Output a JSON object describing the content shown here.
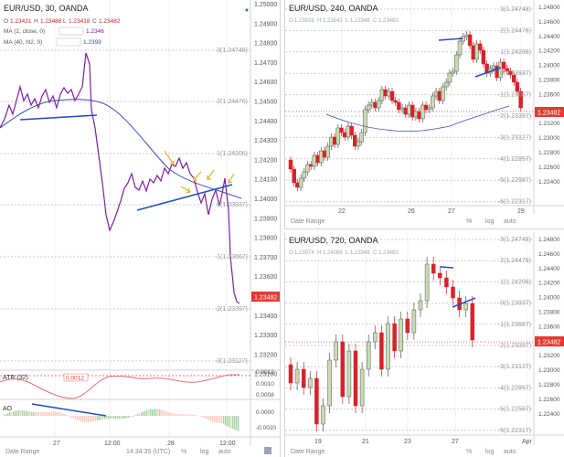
{
  "panels": {
    "left": {
      "title": "EUR/USD, 30, OANDA",
      "ohlc": {
        "o_label": "O",
        "o": "1.23431",
        "h_label": "H",
        "h": "1.23488",
        "l_label": "L",
        "l": "1.23418",
        "c_label": "C",
        "c": "1.23482"
      },
      "ma1": {
        "label": "MA (2, close, 0)",
        "value": "1.2346"
      },
      "ma2": {
        "label": "MA (40, hl2, 0)",
        "value": "1.2398"
      },
      "price_ticks": [
        "1.25000",
        "1.24900",
        "1.24800",
        "1.24700",
        "1.24600",
        "1.24500",
        "1.24400",
        "1.24300",
        "1.24200",
        "1.24100",
        "1.24000",
        "1.23900",
        "1.23800",
        "1.23700",
        "1.23600",
        "1.23500",
        "1.23400",
        "1.23300",
        "1.23200",
        "1.23100"
      ],
      "fib_levels": [
        "3(1.24748)",
        "2(1.24476)",
        "1(1.24206)",
        "0(1.23937)",
        "-1(1.23667)",
        "-2(1.23397)",
        "-3(1.23127)"
      ],
      "last_price": "1.23482",
      "atr": {
        "label": "ATR (32)",
        "value": "0.0012",
        "ticks": [
          "0.0012",
          "0.0010",
          "0.0008"
        ]
      },
      "ao": {
        "label": "AO",
        "ticks": [
          "0.0000",
          "-0.0020"
        ]
      },
      "x_ticks": [
        "27",
        "12:00",
        "28",
        "12:00"
      ],
      "bottom": {
        "date_range": "Date Range",
        "time": "14:34:35 (UTC)",
        "pct": "%",
        "log": "log",
        "auto": "auto"
      }
    },
    "top_right": {
      "title": "EUR/USD, 240, OANDA",
      "ohlc": {
        "o": "1.23828",
        "h": "1.23842",
        "l": "1.23348",
        "c": "1.23482"
      },
      "price_ticks": [
        "1.24800",
        "1.24600",
        "1.24400",
        "1.24200",
        "1.24000",
        "1.23800",
        "1.23600",
        "1.23400",
        "1.23200",
        "1.23000",
        "1.22800",
        "1.22600",
        "1.22400"
      ],
      "fib_levels": [
        "3(1.24748)",
        "2(1.24476)",
        "1(1.24206)",
        "0(1.23937)",
        "-1(1.23667)",
        "-2(1.23397)",
        "-3(1.23127)",
        "-4(1.22857)",
        "-5(1.22587)",
        "-6(1.22317)"
      ],
      "last_price": "1.23482",
      "x_ticks": [
        "22",
        "26",
        "27",
        "29"
      ],
      "bottom": {
        "date_range": "Date Range",
        "pct": "%",
        "log": "log",
        "auto": "auto"
      }
    },
    "bottom_right": {
      "title": "EUR/USD, 720, OANDA",
      "ohlc": {
        "o": "1.23974",
        "h": "1.24086",
        "l": "1.23348",
        "c": "1.23482"
      },
      "price_ticks": [
        "1.24800",
        "1.24600",
        "1.24400",
        "1.24200",
        "1.24000",
        "1.23800",
        "1.23600",
        "1.23400",
        "1.23200",
        "1.23000",
        "1.22800",
        "1.22600",
        "1.22400"
      ],
      "fib_levels": [
        "3(1.24748)",
        "2(1.24476)",
        "1(1.24206)",
        "0(1.23937)",
        "-1(1.23667)",
        "-2(1.23397)",
        "-3(1.23127)",
        "-4(1.22857)",
        "-5(1.22587)",
        "-6(1.22317)"
      ],
      "last_price": "1.23482",
      "x_ticks": [
        "19",
        "21",
        "23",
        "27",
        "Apr"
      ],
      "bottom": {
        "date_range": "Date Range",
        "pct": "%",
        "log": "log",
        "auto": "auto"
      }
    }
  },
  "colors": {
    "up": "#c8dcb4",
    "down": "#d6232a",
    "ma2": "#3f51b5",
    "ma1": "#7b1fa2",
    "trend": "#1e4fc4",
    "arrow": "#e6b422",
    "atr": "#e57373",
    "ao_up": "#a5d6a7",
    "ao_down": "#ffccbc",
    "last_bg": "#e53935"
  }
}
